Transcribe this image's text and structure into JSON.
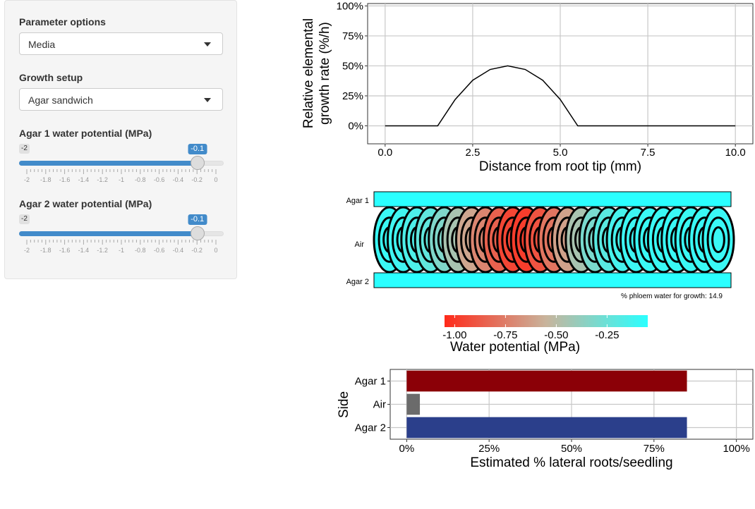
{
  "sidebar": {
    "param_label": "Parameter options",
    "param_value": "Media",
    "setup_label": "Growth setup",
    "setup_value": "Agar sandwich",
    "agar1": {
      "label": "Agar 1 water potential (MPa)",
      "min_label": "-2",
      "value_label": "-0.1",
      "value": -0.1,
      "min": -2,
      "max": 0
    },
    "agar2": {
      "label": "Agar 2 water potential (MPa)",
      "min_label": "-2",
      "value_label": "-0.1",
      "value": -0.1,
      "min": -2,
      "max": 0
    },
    "tick_labels": [
      "-2",
      "-1.8",
      "-1.6",
      "-1.4",
      "-1.2",
      "-1",
      "-0.8",
      "-0.6",
      "-0.4",
      "-0.2",
      "0"
    ]
  },
  "chart_data": [
    {
      "type": "line",
      "title": "",
      "xlabel": "Distance from root tip (mm)",
      "ylabel_lines": [
        "Relative elemental",
        "growth rate (%/h)"
      ],
      "xlim": [
        -0.5,
        10.5
      ],
      "ylim": [
        -0.15,
        1.02
      ],
      "x_ticks": [
        0,
        2.5,
        5,
        7.5,
        10
      ],
      "x_tick_labels": [
        "0.0",
        "2.5",
        "5.0",
        "7.5",
        "10.0"
      ],
      "y_ticks": [
        0,
        0.25,
        0.5,
        0.75,
        1.0
      ],
      "y_tick_labels": [
        "0%",
        "25%",
        "50%",
        "75%",
        "100%"
      ],
      "x": [
        0,
        1.5,
        2.0,
        2.5,
        3.0,
        3.5,
        4.0,
        4.5,
        5.0,
        5.5,
        10.0
      ],
      "y": [
        0,
        0,
        0.22,
        0.38,
        0.47,
        0.5,
        0.47,
        0.38,
        0.22,
        0,
        0
      ],
      "grid": true
    },
    {
      "type": "heatmap",
      "row_labels": [
        "Agar 1",
        "Air",
        "Agar 2"
      ],
      "annotation": "% phloem water for growth: 14.9",
      "colorbar_label": "Water potential (MPa)",
      "colorbar_ticks": [
        -1.0,
        -0.75,
        -0.5,
        -0.25
      ],
      "colorbar_tick_labels": [
        "-1.00",
        "-0.75",
        "-0.50",
        "-0.25"
      ],
      "colorbar_range": [
        -1.05,
        -0.05
      ],
      "colorbar_low": "#ff2a1a",
      "colorbar_mid": "#c8b49c",
      "colorbar_high": "#2affff",
      "agar_color": "#2affff",
      "cell_values": [
        -0.1,
        -0.12,
        -0.16,
        -0.22,
        -0.32,
        -0.45,
        -0.6,
        -0.72,
        -0.85,
        -0.95,
        -0.98,
        -0.9,
        -0.78,
        -0.62,
        -0.45,
        -0.3,
        -0.2,
        -0.14,
        -0.11,
        -0.1,
        -0.1,
        -0.1,
        -0.1,
        -0.1,
        -0.1
      ]
    },
    {
      "type": "bar",
      "orientation": "horizontal",
      "ylabel": "Side",
      "xlabel": "Estimated % lateral roots/seedling",
      "categories": [
        "Agar 1",
        "Air",
        "Agar 2"
      ],
      "values": [
        0.85,
        0.04,
        0.85
      ],
      "colors": [
        "#8b0007",
        "#6b6b6b",
        "#2b3f8b"
      ],
      "xlim": [
        -0.05,
        1.05
      ],
      "x_ticks": [
        0,
        0.25,
        0.5,
        0.75,
        1.0
      ],
      "x_tick_labels": [
        "0%",
        "25%",
        "50%",
        "75%",
        "100%"
      ],
      "grid": true
    }
  ]
}
